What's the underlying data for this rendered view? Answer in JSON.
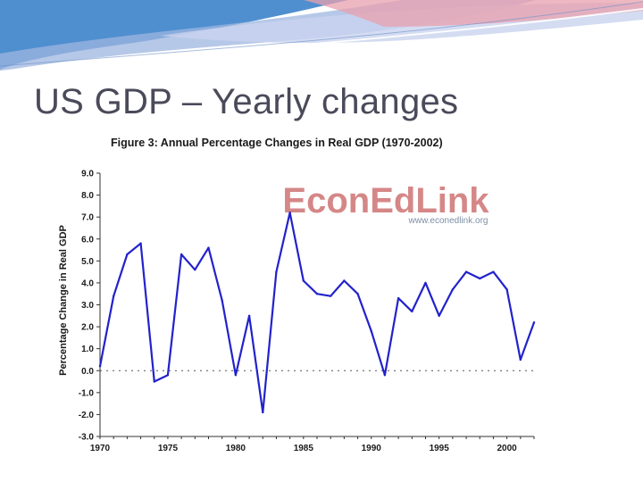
{
  "slide": {
    "title": "US GDP – Yearly changes"
  },
  "colors": {
    "line": "#2222cc",
    "watermark": "#c86060",
    "watermark_url": "#7e8fa6",
    "title_text": "#4a4a5a"
  },
  "watermark": {
    "brand": "EconEdLink",
    "url": "www.econedlink.org"
  },
  "chart_data": {
    "type": "line",
    "title": "Figure 3: Annual Percentage Changes in Real GDP (1970-2002)",
    "xlabel": "",
    "ylabel": "Percentage Change in Real GDP",
    "xlim": [
      1970,
      2002
    ],
    "ylim": [
      -3.0,
      9.0
    ],
    "yticks": [
      "9.0",
      "8.0",
      "7.0",
      "6.0",
      "5.0",
      "4.0",
      "3.0",
      "2.0",
      "1.0",
      "0.0",
      "-1.0",
      "-2.0",
      "-3.0"
    ],
    "xticks": [
      "1970",
      "1975",
      "1980",
      "1985",
      "1990",
      "1995",
      "2000"
    ],
    "grid": false,
    "zero_line": true,
    "series": [
      {
        "name": "Real GDP % change",
        "x": [
          1970,
          1971,
          1972,
          1973,
          1974,
          1975,
          1976,
          1977,
          1978,
          1979,
          1980,
          1981,
          1982,
          1983,
          1984,
          1985,
          1986,
          1987,
          1988,
          1989,
          1990,
          1991,
          1992,
          1993,
          1994,
          1995,
          1996,
          1997,
          1998,
          1999,
          2000,
          2001,
          2002
        ],
        "values": [
          0.2,
          3.4,
          5.3,
          5.8,
          -0.5,
          -0.2,
          5.3,
          4.6,
          5.6,
          3.2,
          -0.2,
          2.5,
          -1.9,
          4.5,
          7.2,
          4.1,
          3.5,
          3.4,
          4.1,
          3.5,
          1.8,
          -0.2,
          3.3,
          2.7,
          4.0,
          2.5,
          3.7,
          4.5,
          4.2,
          4.5,
          3.7,
          0.5,
          2.2
        ]
      }
    ]
  }
}
